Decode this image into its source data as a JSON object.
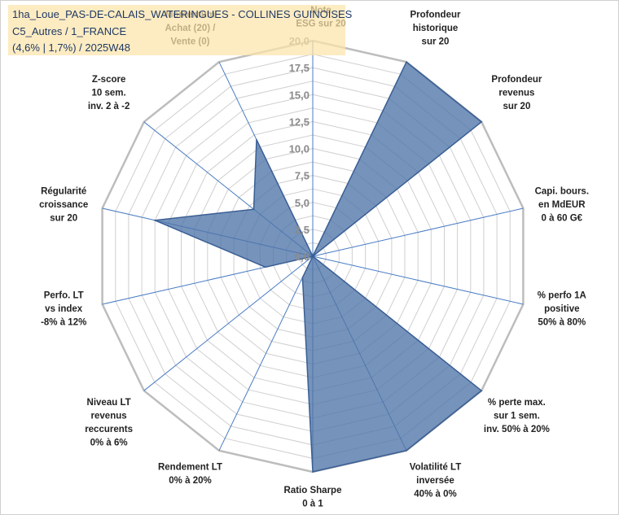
{
  "header": {
    "line1": "1ha_Loue_PAS-DE-CALAIS_WATERINGUES - COLLINES GUINOISES",
    "line2": "C5_Autres / 1_FRANCE",
    "line3": "(4,6% | 1,7%) / 2025W48"
  },
  "chart_data": {
    "type": "radar",
    "rmax": 20,
    "tick_values": [
      0,
      2.5,
      5,
      7.5,
      10,
      12.5,
      15,
      17.5,
      20
    ],
    "tick_labels": [
      "0,0",
      "2,5",
      "5,0",
      "7,5",
      "10,0",
      "12,5",
      "15,0",
      "17,5",
      "20,0"
    ],
    "axes": [
      {
        "label": [
          "Note",
          "ESG sur 20"
        ],
        "value": 0
      },
      {
        "label": [
          "Profondeur",
          "historique",
          "sur 20"
        ],
        "value": 20
      },
      {
        "label": [
          "Profondeur",
          "revenus",
          "sur 20"
        ],
        "value": 20
      },
      {
        "label": [
          "Capi. bours.",
          "en MdEUR",
          "0 à 60 G€"
        ],
        "value": 0
      },
      {
        "label": [
          "% perfo 1A",
          "positive",
          "50% à 80%"
        ],
        "value": 0
      },
      {
        "label": [
          "% perte max.",
          "sur 1 sem.",
          "inv. 50% à 20%"
        ],
        "value": 20
      },
      {
        "label": [
          "Volatilité LT",
          "inversée",
          "40% à 0%"
        ],
        "value": 20
      },
      {
        "label": [
          "Ratio Sharpe",
          "0 à 1"
        ],
        "value": 20
      },
      {
        "label": [
          "Rendement LT",
          "0% à 20%"
        ],
        "value": 2.2
      },
      {
        "label": [
          "Niveau LT",
          "revenus",
          "reccurents",
          "0% à 6%"
        ],
        "value": 0
      },
      {
        "label": [
          "Perfo. LT",
          "vs index",
          "-8% à 12%"
        ],
        "value": 4.5
      },
      {
        "label": [
          "Régularité",
          "croissance",
          "sur 20"
        ],
        "value": 15
      },
      {
        "label": [
          "Z-score",
          "10 sem.",
          "inv. 2 à -2"
        ],
        "value": 7
      },
      {
        "label": [
          "Momentum",
          "Achat (20) /",
          "Vente (0)"
        ],
        "value": 12
      }
    ],
    "fill_color": "#4f75a8",
    "fill_opacity": 0.78,
    "outline_color": "#3a5f95",
    "axis_color": "#4a7cc4",
    "ring_color": "#cfcfcf",
    "outer_ring_color": "#bdbdbd"
  }
}
